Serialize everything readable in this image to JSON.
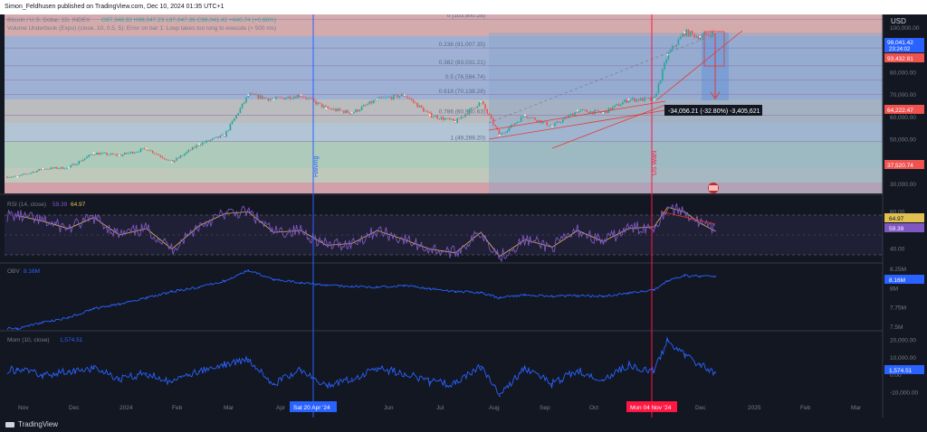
{
  "header": {
    "text": "Simon_Feldhusen published on TradingView.com, Dec 10, 2024 01:35 UTC+1"
  },
  "footer": {
    "brand": "TradingView"
  },
  "legend": {
    "symbol": "Bitcoin / U.S. Dollar, 1D, INDEX",
    "ohlc": "O97,348.92 H98,047.23 L97,047.36 C98,041.42 +640.74 (+0.66%)",
    "indicator": "Volume Underbook (Expo) (close, 10, 0.5, 5): Error on bar 1: Loop takes too long to execute (> 500 ms)"
  },
  "currency": "USD",
  "colors": {
    "background": "#131722",
    "line": "#2962ff",
    "rsi": "#7e57c2",
    "rsi_ma": "#e0c050",
    "candle_up": "#26a69a",
    "candle_down": "#ef5350",
    "halving_line": "#2962ff",
    "election_line": "#ff1744"
  },
  "fib_levels": [
    {
      "ratio": "0",
      "price": 103900.28,
      "label": "0 (103,900.28)"
    },
    {
      "ratio": "0.236",
      "price": 91007.35,
      "label": "0.236 (91,007.35)"
    },
    {
      "ratio": "0.382",
      "price": 83031.21,
      "label": "0.382 (83,031.21)"
    },
    {
      "ratio": "0.5",
      "price": 76584.74,
      "label": "0.5 (76,584.74)"
    },
    {
      "ratio": "0.618",
      "price": 70138.28,
      "label": "0.618 (70,138.28)"
    },
    {
      "ratio": "0.786",
      "price": 60960.63,
      "label": "0.786 (60,960.63)"
    },
    {
      "ratio": "1",
      "price": 49269.2,
      "label": "1 (49,269.20)"
    }
  ],
  "measure": {
    "label": "-34,056.21 (-32.80%) -3,405,621"
  },
  "markers": {
    "halving": "Halving",
    "election": "US Wahl"
  },
  "axis_badges": {
    "halving_date": "Sat 20 Apr '24",
    "election_date": "Mon 04 Nov '24",
    "price_last": "98,041.42",
    "price_countdown": "23:24:02",
    "price_red": "93,432.81",
    "price_64k": "64,222.47",
    "price_37k": "37,520.74",
    "rsi_ma_value": "64.97",
    "rsi_value": "59.39",
    "obv_value": "8.16M",
    "mom_value": "1,574.51"
  },
  "rsi": {
    "label": "RSI (14, close)",
    "value": "59.39",
    "ma_value": "64.97"
  },
  "obv": {
    "label": "OBV",
    "value": "8.16M"
  },
  "mom": {
    "label": "Mom (10, close)",
    "value": "1,574.51"
  },
  "chart_data": [
    {
      "type": "line",
      "name": "price",
      "x": [
        "2023-10-26",
        "2023-11-10",
        "2023-11-25",
        "2023-12-10",
        "2023-12-25",
        "2024-01-10",
        "2024-01-25",
        "2024-02-10",
        "2024-02-25",
        "2024-03-10",
        "2024-03-25",
        "2024-04-10",
        "2024-04-25",
        "2024-05-10",
        "2024-05-25",
        "2024-06-10",
        "2024-06-25",
        "2024-07-10",
        "2024-07-25",
        "2024-08-05",
        "2024-08-20",
        "2024-09-05",
        "2024-09-20",
        "2024-10-05",
        "2024-10-20",
        "2024-11-04",
        "2024-11-12",
        "2024-11-22",
        "2024-12-01",
        "2024-12-10"
      ],
      "y": [
        33500,
        37000,
        37500,
        44000,
        43000,
        46000,
        40000,
        48000,
        52000,
        70000,
        68000,
        70000,
        64000,
        62000,
        68000,
        70000,
        61000,
        58000,
        67000,
        52000,
        61000,
        56000,
        63000,
        62000,
        68000,
        68000,
        88000,
        98000,
        96000,
        98041
      ],
      "y_ticks": [
        30000,
        40000,
        50000,
        60000,
        70000,
        80000,
        90000,
        100000
      ],
      "y_tick_labels": [
        "30,000.00",
        "40,000.00",
        "50,000.00",
        "60,000.00",
        "70,000.00",
        "80,000.00",
        "90,000.00",
        "100,000.00"
      ],
      "ylim": [
        26000,
        106000
      ],
      "x_tick_labels": [
        "Nov",
        "Dec",
        "2024",
        "Feb",
        "Mar",
        "Apr",
        "Jun",
        "Jul",
        "Aug",
        "Sep",
        "Oct",
        "Dec",
        "2025",
        "Feb",
        "Mar"
      ]
    },
    {
      "type": "line",
      "name": "RSI (14, close)",
      "x": [
        "2023-10-26",
        "2023-11-10",
        "2023-11-25",
        "2023-12-10",
        "2023-12-25",
        "2024-01-10",
        "2024-01-25",
        "2024-02-10",
        "2024-02-25",
        "2024-03-10",
        "2024-03-25",
        "2024-04-10",
        "2024-04-25",
        "2024-05-10",
        "2024-05-25",
        "2024-06-10",
        "2024-06-25",
        "2024-07-10",
        "2024-07-25",
        "2024-08-05",
        "2024-08-20",
        "2024-09-05",
        "2024-09-20",
        "2024-10-05",
        "2024-10-20",
        "2024-11-04",
        "2024-11-12",
        "2024-11-22",
        "2024-12-01",
        "2024-12-10"
      ],
      "y": [
        76,
        70,
        62,
        74,
        55,
        62,
        40,
        65,
        78,
        80,
        58,
        60,
        44,
        46,
        60,
        50,
        40,
        36,
        58,
        32,
        50,
        42,
        60,
        48,
        62,
        64,
        85,
        80,
        68,
        59.39
      ],
      "y_ticks": [
        40,
        60,
        80
      ],
      "y_tick_labels": [
        "40.00",
        "60.00",
        "80.00"
      ],
      "ylim": [
        25,
        95
      ],
      "bands": [
        30,
        70
      ]
    },
    {
      "type": "line",
      "name": "OBV",
      "x": [
        "2023-10-26",
        "2023-11-10",
        "2023-11-25",
        "2023-12-10",
        "2023-12-25",
        "2024-01-10",
        "2024-01-25",
        "2024-02-10",
        "2024-02-25",
        "2024-03-10",
        "2024-03-25",
        "2024-04-10",
        "2024-04-25",
        "2024-05-10",
        "2024-05-25",
        "2024-06-10",
        "2024-06-25",
        "2024-07-10",
        "2024-07-25",
        "2024-08-05",
        "2024-08-20",
        "2024-09-05",
        "2024-09-20",
        "2024-10-05",
        "2024-10-20",
        "2024-11-04",
        "2024-11-12",
        "2024-11-22",
        "2024-12-01",
        "2024-12-10"
      ],
      "y": [
        7.48,
        7.56,
        7.62,
        7.74,
        7.8,
        7.88,
        7.96,
        8.02,
        8.1,
        8.24,
        8.12,
        8.08,
        8.04,
        8.03,
        8.02,
        8.04,
        8.0,
        7.96,
        7.95,
        7.88,
        7.92,
        7.9,
        7.91,
        7.9,
        7.94,
        7.98,
        8.1,
        8.17,
        8.16,
        8.16
      ],
      "y_ticks": [
        7.5,
        7.75,
        8.0,
        8.25
      ],
      "y_tick_labels": [
        "7.5M",
        "7.75M",
        "8M",
        "8.25M"
      ],
      "ylim": [
        7.45,
        8.3
      ]
    },
    {
      "type": "line",
      "name": "Mom (10, close)",
      "x": [
        "2023-10-26",
        "2023-11-10",
        "2023-11-25",
        "2023-12-10",
        "2023-12-25",
        "2024-01-10",
        "2024-01-25",
        "2024-02-10",
        "2024-02-25",
        "2024-03-10",
        "2024-03-25",
        "2024-04-10",
        "2024-04-25",
        "2024-05-10",
        "2024-05-25",
        "2024-06-10",
        "2024-06-25",
        "2024-07-10",
        "2024-07-25",
        "2024-08-05",
        "2024-08-20",
        "2024-09-05",
        "2024-09-20",
        "2024-10-05",
        "2024-10-20",
        "2024-11-04",
        "2024-11-12",
        "2024-11-22",
        "2024-12-01",
        "2024-12-10"
      ],
      "y": [
        3000,
        0,
        2000,
        4000,
        -2000,
        1000,
        -4000,
        2000,
        6000,
        9000,
        -5000,
        3000,
        -6000,
        -2000,
        4000,
        1000,
        -4000,
        -5000,
        5000,
        -12000,
        4000,
        -5000,
        3000,
        -3000,
        6000,
        2000,
        20000,
        12000,
        6000,
        1574.51
      ],
      "y_ticks": [
        -10000,
        0,
        10000,
        20000
      ],
      "y_tick_labels": [
        "-10,000.00",
        "0.00",
        "10,000.00",
        "20,000.00"
      ],
      "ylim": [
        -14000,
        24000
      ]
    }
  ]
}
